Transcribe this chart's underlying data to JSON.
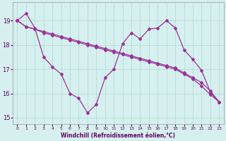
{
  "xlabel": "Windchill (Refroidissement éolien,°C)",
  "bg_color": "#d5f0ee",
  "line_color": "#993399",
  "grid_color": "#b8dcd8",
  "x_values": [
    0,
    1,
    2,
    3,
    4,
    5,
    6,
    7,
    8,
    9,
    10,
    11,
    12,
    13,
    14,
    15,
    16,
    17,
    18,
    19,
    20,
    21,
    22,
    23
  ],
  "s1": [
    19.0,
    18.75,
    18.65,
    18.55,
    18.45,
    18.35,
    18.25,
    18.15,
    18.05,
    17.95,
    17.85,
    17.75,
    17.65,
    17.55,
    17.45,
    17.35,
    17.25,
    17.15,
    17.05,
    16.85,
    16.65,
    16.45,
    16.1,
    15.65
  ],
  "s2": [
    19.0,
    18.75,
    18.65,
    18.5,
    18.4,
    18.3,
    18.2,
    18.1,
    18.0,
    17.9,
    17.8,
    17.7,
    17.6,
    17.5,
    17.4,
    17.3,
    17.2,
    17.1,
    17.0,
    16.8,
    16.6,
    16.3,
    15.95,
    15.65
  ],
  "s3": [
    19.0,
    19.3,
    18.7,
    17.5,
    17.1,
    16.8,
    16.0,
    15.8,
    15.2,
    15.55,
    16.65,
    17.0,
    18.05,
    18.5,
    18.25,
    18.65,
    18.7,
    19.0,
    18.7,
    17.8,
    17.4,
    16.95,
    16.05,
    15.65
  ],
  "ylim": [
    14.75,
    19.75
  ],
  "yticks": [
    15,
    16,
    17,
    18,
    19
  ],
  "xlim": [
    -0.5,
    23.5
  ]
}
